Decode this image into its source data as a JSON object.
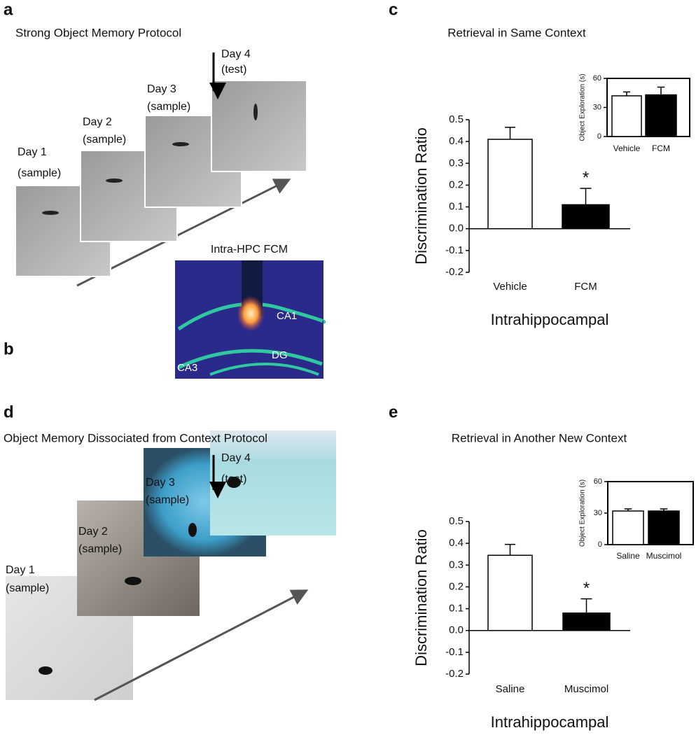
{
  "panels": {
    "a": {
      "letter": "a",
      "title": "Strong Object Memory Protocol",
      "days": [
        [
          "Day 1",
          "(sample)"
        ],
        [
          "Day 2",
          "(sample)"
        ],
        [
          "Day 3",
          "(sample)"
        ],
        [
          "Day 4",
          "(test)"
        ]
      ],
      "image_title": "Intra-HPC FCM",
      "image_labels": [
        "CA1",
        "DG",
        "CA3"
      ]
    },
    "b": {
      "letter": "b"
    },
    "c": {
      "letter": "c"
    },
    "d": {
      "letter": "d",
      "title": "Object Memory Dissociated from Context Protocol",
      "days": [
        [
          "Day 1",
          "(sample)"
        ],
        [
          "Day 2",
          "(sample)"
        ],
        [
          "Day 3",
          "(sample)"
        ],
        [
          "Day 4",
          "(test)"
        ]
      ]
    },
    "e": {
      "letter": "e"
    }
  },
  "chart_data": [
    {
      "type": "bar",
      "title": "Retrieval in Same Context",
      "x_label": "Intrahippocampal",
      "y_label": "Discrimination Ratio",
      "categories": [
        "Vehicle",
        "FCM"
      ],
      "values": [
        0.41,
        0.11
      ],
      "errors": [
        0.055,
        0.075
      ],
      "colors": [
        "#ffffff",
        "#000000"
      ],
      "annotation": "*",
      "ylim": [
        -0.2,
        0.5
      ],
      "yticks": [
        -0.2,
        -0.1,
        {
          "value": 0,
          "label": "0.0"
        },
        0.1,
        0.2,
        0.3,
        0.4,
        0.5
      ],
      "box": false
    },
    {
      "type": "bar",
      "y_label": "Object Exploration (s)",
      "categories": [
        "Vehicle",
        "FCM"
      ],
      "values": [
        42,
        43
      ],
      "errors": [
        4,
        8
      ],
      "colors": [
        "#ffffff",
        "#000000"
      ],
      "ylim": [
        0,
        60
      ],
      "yticks": [
        0,
        30,
        60
      ],
      "box": true
    },
    {
      "type": "bar",
      "title": "Retrieval in Another New Context",
      "x_label": "Intrahippocampal",
      "y_label": "Discrimination Ratio",
      "categories": [
        "Saline",
        "Muscimol"
      ],
      "values": [
        0.345,
        0.08
      ],
      "errors": [
        0.05,
        0.065
      ],
      "colors": [
        "#ffffff",
        "#000000"
      ],
      "annotation": "*",
      "ylim": [
        -0.2,
        0.5
      ],
      "yticks": [
        -0.2,
        -0.1,
        {
          "value": 0,
          "label": "0.0"
        },
        0.1,
        0.2,
        0.3,
        0.4,
        0.5
      ],
      "box": false
    },
    {
      "type": "bar",
      "y_label": "Object Exploration (s)",
      "categories": [
        "Saline",
        "Muscimol"
      ],
      "values": [
        32,
        32
      ],
      "errors": [
        2,
        2
      ],
      "colors": [
        "#ffffff",
        "#000000"
      ],
      "ylim": [
        0,
        60
      ],
      "yticks": [
        0,
        30,
        60
      ],
      "box": true
    }
  ]
}
